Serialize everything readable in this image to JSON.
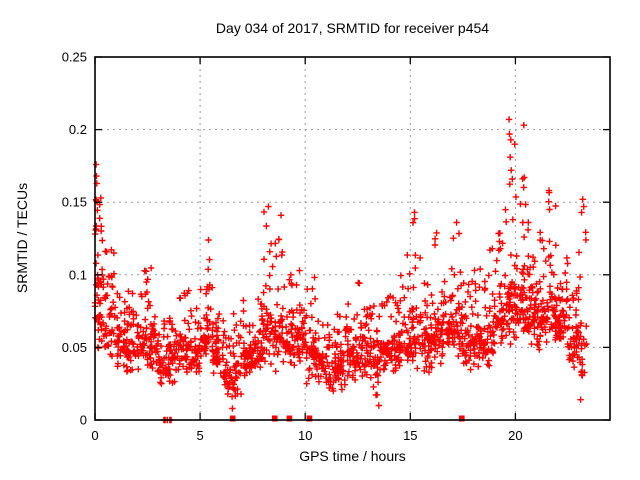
{
  "title": "Day 034 of 2017, SRMTID for receiver p454",
  "chart_data": {
    "type": "scatter",
    "title": "Day 034 of 2017, SRMTID for receiver p454",
    "xlabel": "GPS time / hours",
    "ylabel": "SRMTID / TECUs",
    "xlim": [
      0,
      24.5
    ],
    "ylim": [
      0,
      0.25
    ],
    "xtick_values": [
      0,
      5,
      10,
      15,
      20
    ],
    "xtick_labels": [
      "0",
      "5",
      "10",
      "15",
      "20"
    ],
    "ytick_values": [
      0,
      0.05,
      0.1,
      0.15,
      0.2,
      0.25
    ],
    "ytick_labels": [
      "0",
      "0.05",
      "0.1",
      "0.15",
      "0.2",
      "0.25"
    ],
    "grid": true,
    "grid_color": "#9a9a9a",
    "marker": "plus",
    "marker_color": "#ff0000",
    "frame_color": "#000000",
    "series_name": "SRMTID",
    "density_bins": [
      [
        0.0,
        0.3,
        45,
        0.04,
        0.13,
        0.176
      ],
      [
        0.3,
        1.0,
        55,
        0.04,
        0.09,
        0.125
      ],
      [
        1.0,
        1.5,
        40,
        0.035,
        0.07,
        0.09
      ],
      [
        1.5,
        2.0,
        40,
        0.03,
        0.065,
        0.09
      ],
      [
        2.0,
        2.5,
        42,
        0.03,
        0.075,
        0.105
      ],
      [
        2.5,
        3.0,
        42,
        0.03,
        0.075,
        0.105
      ],
      [
        3.0,
        3.5,
        38,
        0.022,
        0.055,
        0.075
      ],
      [
        3.5,
        4.0,
        38,
        0.025,
        0.06,
        0.08
      ],
      [
        4.0,
        4.5,
        40,
        0.03,
        0.065,
        0.095
      ],
      [
        4.5,
        5.0,
        40,
        0.03,
        0.06,
        0.08
      ],
      [
        5.0,
        5.3,
        25,
        0.035,
        0.07,
        0.1
      ],
      [
        5.3,
        5.6,
        25,
        0.04,
        0.09,
        0.124
      ],
      [
        5.6,
        6.0,
        35,
        0.025,
        0.06,
        0.08
      ],
      [
        6.0,
        6.5,
        38,
        0.015,
        0.05,
        0.07
      ],
      [
        6.5,
        7.0,
        38,
        0.006,
        0.05,
        0.075
      ],
      [
        7.0,
        7.5,
        40,
        0.03,
        0.06,
        0.085
      ],
      [
        7.5,
        8.0,
        40,
        0.03,
        0.065,
        0.09
      ],
      [
        8.0,
        8.5,
        42,
        0.035,
        0.09,
        0.147
      ],
      [
        8.5,
        9.0,
        42,
        0.03,
        0.09,
        0.141
      ],
      [
        9.0,
        9.5,
        40,
        0.03,
        0.07,
        0.1
      ],
      [
        9.5,
        10.0,
        42,
        0.035,
        0.075,
        0.105
      ],
      [
        10.0,
        10.5,
        42,
        0.02,
        0.07,
        0.11
      ],
      [
        10.5,
        11.0,
        40,
        0.02,
        0.055,
        0.075
      ],
      [
        11.0,
        11.5,
        40,
        0.015,
        0.05,
        0.07
      ],
      [
        11.5,
        12.0,
        40,
        0.015,
        0.055,
        0.075
      ],
      [
        12.0,
        12.5,
        42,
        0.025,
        0.06,
        0.08
      ],
      [
        12.5,
        13.0,
        42,
        0.025,
        0.065,
        0.095
      ],
      [
        13.0,
        13.5,
        40,
        0.01,
        0.06,
        0.09
      ],
      [
        13.5,
        14.0,
        40,
        0.03,
        0.06,
        0.085
      ],
      [
        14.0,
        14.5,
        42,
        0.03,
        0.065,
        0.09
      ],
      [
        14.5,
        15.0,
        40,
        0.035,
        0.07,
        0.115
      ],
      [
        15.0,
        15.5,
        40,
        0.035,
        0.08,
        0.143
      ],
      [
        15.5,
        16.0,
        40,
        0.03,
        0.07,
        0.1
      ],
      [
        16.0,
        16.5,
        42,
        0.035,
        0.08,
        0.13
      ],
      [
        16.5,
        17.0,
        42,
        0.04,
        0.08,
        0.11
      ],
      [
        17.0,
        17.5,
        42,
        0.04,
        0.085,
        0.136
      ],
      [
        17.5,
        18.0,
        40,
        0.03,
        0.07,
        0.1
      ],
      [
        18.0,
        18.5,
        40,
        0.03,
        0.07,
        0.105
      ],
      [
        18.5,
        19.0,
        42,
        0.035,
        0.075,
        0.118
      ],
      [
        19.0,
        19.5,
        45,
        0.05,
        0.09,
        0.13
      ],
      [
        19.5,
        20.0,
        50,
        0.05,
        0.11,
        0.19
      ],
      [
        20.0,
        20.5,
        50,
        0.05,
        0.1,
        0.17
      ],
      [
        20.5,
        21.0,
        48,
        0.05,
        0.1,
        0.14
      ],
      [
        21.0,
        21.5,
        45,
        0.045,
        0.095,
        0.13
      ],
      [
        21.5,
        22.0,
        45,
        0.05,
        0.1,
        0.158
      ],
      [
        22.0,
        22.5,
        45,
        0.05,
        0.09,
        0.115
      ],
      [
        22.5,
        23.0,
        40,
        0.03,
        0.07,
        0.09
      ],
      [
        23.0,
        23.4,
        25,
        0.012,
        0.08,
        0.152
      ]
    ],
    "outliers": [
      [
        0.05,
        0.176
      ],
      [
        0.07,
        0.168
      ],
      [
        0.1,
        0.15
      ],
      [
        0.9,
        0.115
      ],
      [
        5.4,
        0.124
      ],
      [
        8.25,
        0.147
      ],
      [
        8.85,
        0.141
      ],
      [
        13.5,
        0.01
      ],
      [
        15.2,
        0.143
      ],
      [
        17.2,
        0.136
      ],
      [
        18.9,
        0.118
      ],
      [
        19.7,
        0.207
      ],
      [
        20.4,
        0.203
      ],
      [
        19.72,
        0.197
      ],
      [
        19.78,
        0.193
      ],
      [
        19.75,
        0.181
      ],
      [
        19.8,
        0.172
      ],
      [
        19.85,
        0.166
      ],
      [
        20.42,
        0.167
      ],
      [
        21.6,
        0.158
      ],
      [
        21.62,
        0.145
      ],
      [
        23.2,
        0.152
      ],
      [
        23.25,
        0.147
      ],
      [
        23.15,
        0.143
      ],
      [
        23.1,
        0.014
      ]
    ],
    "zero_markers": [
      {
        "x": 3.28,
        "style": "tick"
      },
      {
        "x": 3.34,
        "style": "tick"
      },
      {
        "x": 3.44,
        "style": "tick"
      },
      {
        "x": 3.56,
        "style": "tick"
      },
      {
        "x": 3.62,
        "style": "tick"
      },
      {
        "x": 6.55,
        "style": "square"
      },
      {
        "x": 8.55,
        "style": "square"
      },
      {
        "x": 9.25,
        "style": "square"
      },
      {
        "x": 10.2,
        "style": "square"
      },
      {
        "x": 17.45,
        "style": "square"
      }
    ]
  }
}
